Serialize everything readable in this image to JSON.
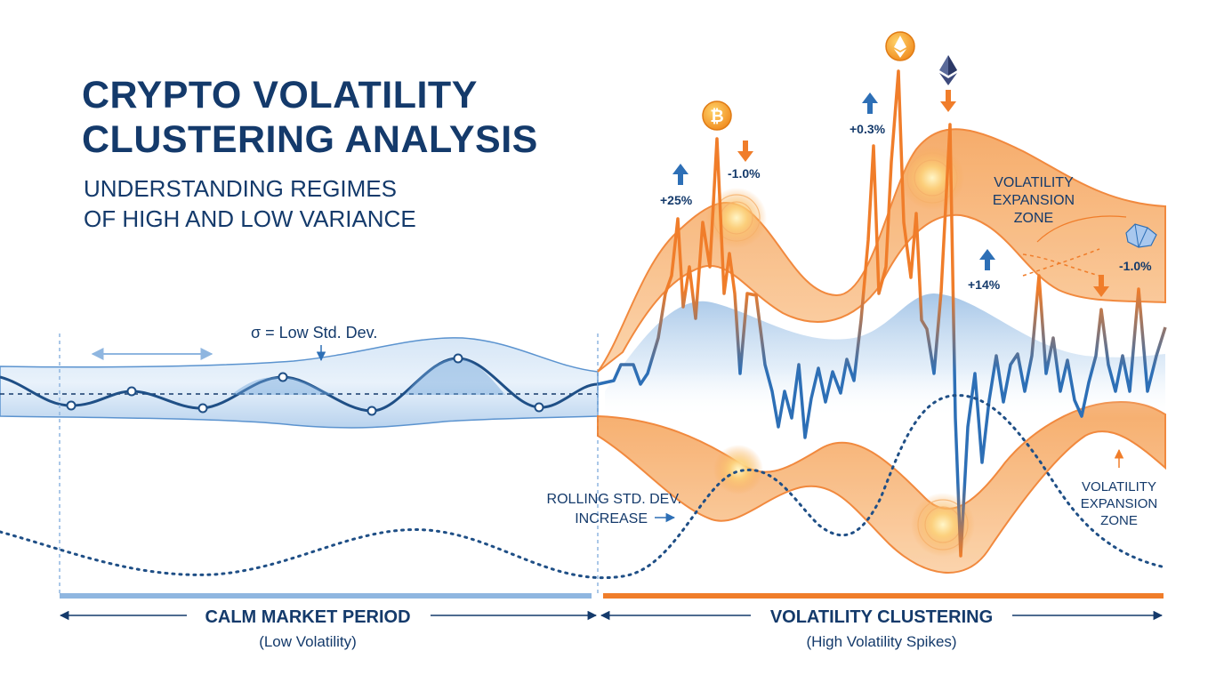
{
  "header": {
    "title_line1": "CRYPTO VOLATILITY",
    "title_line2": "CLUSTERING ANALYSIS",
    "subtitle_line1": "UNDERSTANDING REGIMES",
    "subtitle_line2": "OF HIGH AND LOW VARIANCE"
  },
  "annotations": {
    "low_std": "σ = Low Std. Dev.",
    "rolling_line1": "ROLLING STD. DEV.",
    "rolling_line2": "INCREASE",
    "zone_top_line1": "VOLATILITY",
    "zone_top_line2": "EXPANSION",
    "zone_top_line3": "ZONE",
    "zone_bottom_line1": "VOLATILITY",
    "zone_bottom_line2": "EXPANSION",
    "zone_bottom_line3": "ZONE"
  },
  "moves": {
    "up_25": "+25%",
    "down_1a": "-1.0%",
    "up_03": "+0.3%",
    "up_14": "+14%",
    "down_1b": "-1.0%"
  },
  "coins": {
    "bitcoin": {
      "icon": "bitcoin-icon",
      "symbol": "₿"
    },
    "ether_gold": {
      "icon": "ethereum-icon"
    },
    "ether_dark": {
      "icon": "ethereum-icon"
    }
  },
  "periods": {
    "calm_label": "CALM MARKET PERIOD",
    "calm_sub": "(Low Volatility)",
    "cluster_label": "VOLATILITY CLUSTERING",
    "cluster_sub": "(High Volatility Spikes)"
  },
  "colors": {
    "navy": "#143a6b",
    "calm_blue": "#2d6fb6",
    "light_blue": "#bcd6ef",
    "orange": "#f07d2a",
    "orange_fill": "#f9b77a",
    "dotted": "#1f4f86"
  }
}
